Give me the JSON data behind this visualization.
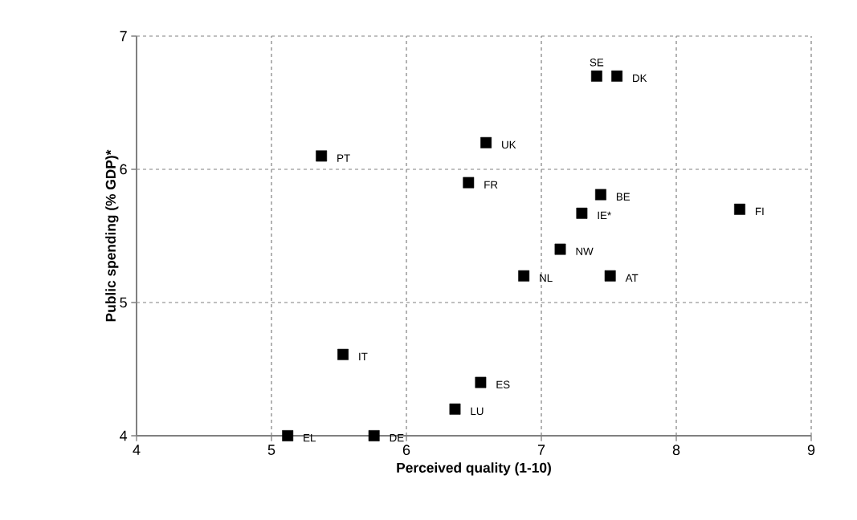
{
  "chart_data": {
    "type": "scatter",
    "xlabel": "Perceived quality (1-10)",
    "ylabel": "Public spending (% GDP)*",
    "x": [
      7.41,
      7.56,
      6.59,
      5.37,
      6.46,
      7.44,
      7.3,
      7.14,
      6.87,
      7.51,
      8.47,
      5.53,
      6.55,
      6.36,
      5.12,
      5.76
    ],
    "values": [
      6.7,
      6.7,
      6.2,
      6.1,
      5.9,
      5.81,
      5.67,
      5.4,
      5.2,
      5.2,
      5.7,
      4.61,
      4.4,
      4.2,
      4.0,
      4.0
    ],
    "color": "#000000",
    "marker": "square",
    "xlim": [
      4,
      9
    ],
    "ylim": [
      4,
      7
    ],
    "xticks": [
      4,
      5,
      6,
      7,
      8,
      9
    ],
    "yticks": [
      4,
      5,
      6,
      7
    ],
    "grid": true,
    "annotations": [
      {
        "text": "SE",
        "x": 7.41,
        "y": 6.7
      },
      {
        "text": "DK",
        "x": 7.56,
        "y": 6.7
      },
      {
        "text": "UK",
        "x": 6.59,
        "y": 6.2
      },
      {
        "text": "PT",
        "x": 5.37,
        "y": 6.1
      },
      {
        "text": "FR",
        "x": 6.46,
        "y": 5.9
      },
      {
        "text": "BE",
        "x": 7.44,
        "y": 5.81
      },
      {
        "text": "IE*",
        "x": 7.3,
        "y": 5.67
      },
      {
        "text": "NW",
        "x": 7.14,
        "y": 5.4
      },
      {
        "text": "NL",
        "x": 6.87,
        "y": 5.2
      },
      {
        "text": "AT",
        "x": 7.51,
        "y": 5.2
      },
      {
        "text": "FI",
        "x": 8.47,
        "y": 5.7
      },
      {
        "text": "IT",
        "x": 5.53,
        "y": 4.61
      },
      {
        "text": "ES",
        "x": 6.55,
        "y": 4.4
      },
      {
        "text": "LU",
        "x": 6.36,
        "y": 4.2
      },
      {
        "text": "EL",
        "x": 5.12,
        "y": 4.0
      },
      {
        "text": "DE",
        "x": 5.76,
        "y": 4.0
      }
    ]
  }
}
